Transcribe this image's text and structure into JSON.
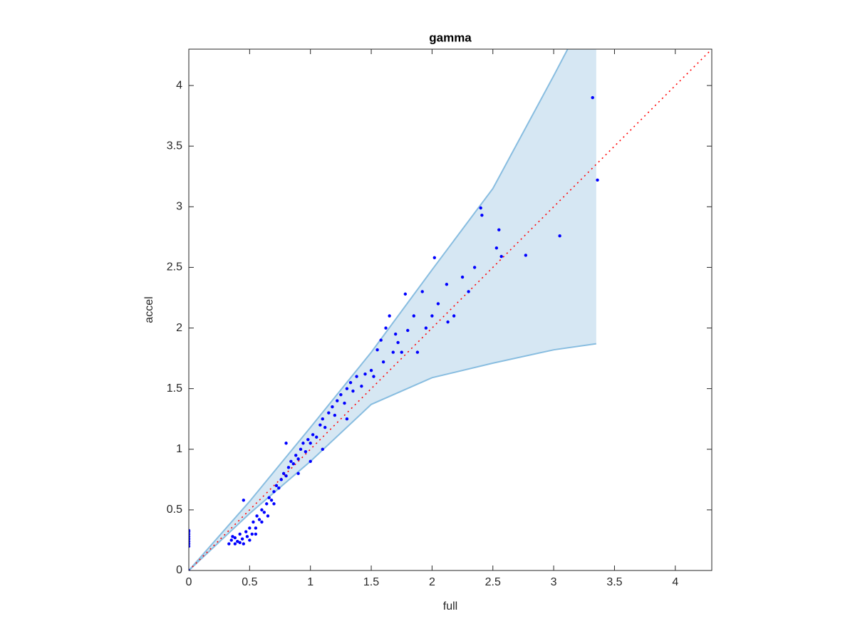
{
  "chart_data": {
    "type": "scatter",
    "title": "gamma",
    "x_label": "full",
    "y_label": "accel",
    "xlim": [
      0,
      4.3
    ],
    "ylim": [
      0,
      4.3
    ],
    "xticks": [
      0,
      0.5,
      1,
      1.5,
      2,
      2.5,
      3,
      3.5,
      4
    ],
    "yticks": [
      0,
      0.5,
      1,
      1.5,
      2,
      2.5,
      3,
      3.5,
      4
    ],
    "color": "#0000ff",
    "x": [
      0,
      0,
      0,
      0,
      0,
      0,
      0,
      0,
      0,
      0.33,
      0.35,
      0.36,
      0.38,
      0.4,
      0.42,
      0.44,
      0.45,
      0.47,
      0.48,
      0.5,
      0.5,
      0.52,
      0.53,
      0.55,
      0.56,
      0.58,
      0.6,
      0.62,
      0.64,
      0.66,
      0.68,
      0.7,
      0.72,
      0.74,
      0.76,
      0.78,
      0.8,
      0.82,
      0.84,
      0.86,
      0.88,
      0.9,
      0.92,
      0.94,
      0.96,
      0.98,
      1.0,
      1.02,
      1.05,
      1.08,
      1.1,
      1.12,
      1.15,
      1.18,
      1.2,
      1.22,
      1.25,
      1.28,
      1.3,
      1.33,
      1.35,
      1.38,
      1.42,
      1.45,
      1.5,
      1.52,
      1.55,
      1.58,
      1.6,
      1.62,
      1.65,
      1.68,
      1.7,
      1.72,
      1.75,
      1.78,
      1.8,
      1.85,
      1.88,
      1.92,
      1.95,
      2.0,
      2.02,
      2.05,
      2.12,
      2.13,
      2.18,
      2.25,
      2.3,
      2.35,
      2.4,
      2.41,
      2.53,
      2.55,
      2.57,
      2.77,
      3.05,
      3.32,
      3.36,
      0.45,
      0.6,
      0.7,
      0.9,
      1.1,
      1.3,
      0.8,
      1.0,
      0.38,
      0.42,
      0.55,
      0.65
    ],
    "values": [
      0.2,
      0.22,
      0.24,
      0.26,
      0.28,
      0.3,
      0.32,
      0.33,
      0,
      0.22,
      0.25,
      0.28,
      0.22,
      0.24,
      0.3,
      0.26,
      0.22,
      0.32,
      0.28,
      0.25,
      0.35,
      0.3,
      0.4,
      0.35,
      0.45,
      0.42,
      0.5,
      0.48,
      0.55,
      0.6,
      0.58,
      0.65,
      0.7,
      0.68,
      0.75,
      0.8,
      0.78,
      0.85,
      0.9,
      0.88,
      0.95,
      0.92,
      1.0,
      1.05,
      0.98,
      1.08,
      1.05,
      1.12,
      1.1,
      1.2,
      1.25,
      1.18,
      1.3,
      1.35,
      1.28,
      1.4,
      1.45,
      1.38,
      1.5,
      1.55,
      1.48,
      1.6,
      1.52,
      1.62,
      1.65,
      1.6,
      1.82,
      1.9,
      1.72,
      2.0,
      2.1,
      1.8,
      1.95,
      1.88,
      1.8,
      2.28,
      1.98,
      2.1,
      1.8,
      2.3,
      2.0,
      2.1,
      2.58,
      2.2,
      2.36,
      2.05,
      2.1,
      2.42,
      2.3,
      2.5,
      2.99,
      2.93,
      2.66,
      2.81,
      2.59,
      2.6,
      2.76,
      3.9,
      3.22,
      0.58,
      0.4,
      0.55,
      0.8,
      1.0,
      1.25,
      1.05,
      0.9,
      0.27,
      0.23,
      0.3,
      0.45
    ],
    "band": {
      "color": "#d6e7f3",
      "edge_color": "#88bde0",
      "x": [
        0,
        0.5,
        1,
        1.5,
        2,
        2.5,
        3,
        3.35
      ],
      "upper": [
        0,
        0.57,
        1.18,
        1.8,
        2.48,
        3.15,
        4.08,
        4.75
      ],
      "lower": [
        0,
        0.47,
        0.9,
        1.37,
        1.59,
        1.71,
        1.82,
        1.87
      ]
    },
    "reference_line": {
      "color": "#ff0000",
      "x": [
        0,
        4.3
      ],
      "values": [
        0,
        4.3
      ]
    }
  }
}
